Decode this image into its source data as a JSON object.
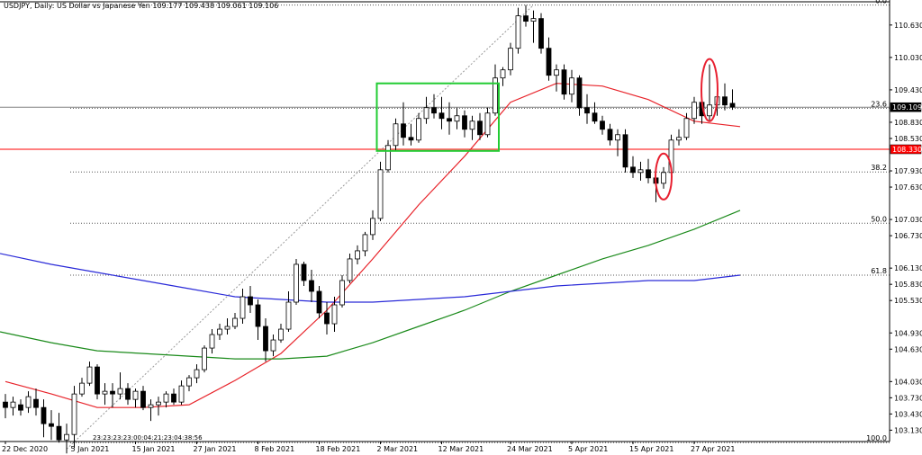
{
  "window": {
    "header": "USDJPY, Daily:  US Dollar vs Japanese Yen  109.177 109.438 109.061 109.106",
    "time_code": "23:23:23:23:00:04:21:23:04:38:56"
  },
  "colors": {
    "background": "#ffffff",
    "candle_outline": "#000000",
    "bull_fill": "#ffffff",
    "bear_fill": "#000000",
    "ma_fast": "#e8232a",
    "ma_mid": "#1a8a1a",
    "ma_slow": "#2a2ad8",
    "green_box": "#22cc33",
    "red_marker": "#e82030",
    "fib_line": "#555555",
    "price_line": "#808080",
    "resistance_line": "#ff0000"
  },
  "chart_data": {
    "type": "candlestick",
    "symbol": "USDJPY",
    "timeframe": "Daily",
    "ylim": [
      102.92,
      111.01
    ],
    "y_ticks": [
      "110.630",
      "110.030",
      "109.430",
      "108.830",
      "108.530",
      "107.930",
      "107.630",
      "107.030",
      "106.730",
      "106.130",
      "105.830",
      "105.530",
      "104.930",
      "104.630",
      "104.030",
      "103.730",
      "103.430",
      "103.130",
      "102.830"
    ],
    "x_ticks": [
      {
        "label": "22 Dec 2020",
        "index": 0
      },
      {
        "label": "5 Jan 2021",
        "index": 9
      },
      {
        "label": "15 Jan 2021",
        "index": 17
      },
      {
        "label": "27 Jan 2021",
        "index": 25
      },
      {
        "label": "8 Feb 2021",
        "index": 33
      },
      {
        "label": "18 Feb 2021",
        "index": 41
      },
      {
        "label": "2 Mar 2021",
        "index": 49
      },
      {
        "label": "12 Mar 2021",
        "index": 57
      },
      {
        "label": "24 Mar 2021",
        "index": 66
      },
      {
        "label": "5 Apr 2021",
        "index": 74
      },
      {
        "label": "15 Apr 2021",
        "index": 82
      },
      {
        "label": "27 Apr 2021",
        "index": 90
      }
    ],
    "candles": [
      {
        "o": 103.65,
        "h": 103.8,
        "l": 103.35,
        "c": 103.55
      },
      {
        "o": 103.55,
        "h": 103.75,
        "l": 103.4,
        "c": 103.65
      },
      {
        "o": 103.6,
        "h": 103.7,
        "l": 103.4,
        "c": 103.5
      },
      {
        "o": 103.55,
        "h": 103.85,
        "l": 103.45,
        "c": 103.75
      },
      {
        "o": 103.7,
        "h": 103.9,
        "l": 103.4,
        "c": 103.55
      },
      {
        "o": 103.55,
        "h": 103.7,
        "l": 103.0,
        "c": 103.25
      },
      {
        "o": 103.25,
        "h": 103.5,
        "l": 102.95,
        "c": 103.2
      },
      {
        "o": 103.2,
        "h": 103.45,
        "l": 102.9,
        "c": 102.95
      },
      {
        "o": 102.95,
        "h": 103.25,
        "l": 102.7,
        "c": 103.05
      },
      {
        "o": 103.05,
        "h": 103.95,
        "l": 102.8,
        "c": 103.8
      },
      {
        "o": 103.8,
        "h": 104.1,
        "l": 103.75,
        "c": 104.0
      },
      {
        "o": 104.0,
        "h": 104.4,
        "l": 103.95,
        "c": 104.3
      },
      {
        "o": 104.3,
        "h": 104.35,
        "l": 103.7,
        "c": 103.8
      },
      {
        "o": 103.8,
        "h": 104.0,
        "l": 103.6,
        "c": 103.85
      },
      {
        "o": 103.85,
        "h": 104.0,
        "l": 103.55,
        "c": 103.8
      },
      {
        "o": 103.8,
        "h": 104.2,
        "l": 103.7,
        "c": 103.9
      },
      {
        "o": 103.9,
        "h": 104.0,
        "l": 103.6,
        "c": 103.7
      },
      {
        "o": 103.7,
        "h": 103.9,
        "l": 103.55,
        "c": 103.85
      },
      {
        "o": 103.85,
        "h": 103.95,
        "l": 103.5,
        "c": 103.55
      },
      {
        "o": 103.55,
        "h": 103.7,
        "l": 103.3,
        "c": 103.6
      },
      {
        "o": 103.6,
        "h": 103.75,
        "l": 103.4,
        "c": 103.65
      },
      {
        "o": 103.65,
        "h": 103.85,
        "l": 103.55,
        "c": 103.8
      },
      {
        "o": 103.8,
        "h": 103.9,
        "l": 103.6,
        "c": 103.65
      },
      {
        "o": 103.65,
        "h": 104.05,
        "l": 103.6,
        "c": 103.95
      },
      {
        "o": 103.95,
        "h": 104.15,
        "l": 103.85,
        "c": 104.1
      },
      {
        "o": 104.1,
        "h": 104.35,
        "l": 104.0,
        "c": 104.25
      },
      {
        "o": 104.25,
        "h": 104.7,
        "l": 104.2,
        "c": 104.65
      },
      {
        "o": 104.65,
        "h": 105.0,
        "l": 104.55,
        "c": 104.9
      },
      {
        "o": 104.9,
        "h": 105.1,
        "l": 104.8,
        "c": 105.0
      },
      {
        "o": 105.0,
        "h": 105.2,
        "l": 104.9,
        "c": 105.05
      },
      {
        "o": 105.05,
        "h": 105.3,
        "l": 105.0,
        "c": 105.2
      },
      {
        "o": 105.2,
        "h": 105.75,
        "l": 105.1,
        "c": 105.6
      },
      {
        "o": 105.6,
        "h": 105.8,
        "l": 105.3,
        "c": 105.45
      },
      {
        "o": 105.45,
        "h": 105.55,
        "l": 104.8,
        "c": 105.05
      },
      {
        "o": 105.05,
        "h": 105.2,
        "l": 104.4,
        "c": 104.6
      },
      {
        "o": 104.6,
        "h": 104.9,
        "l": 104.5,
        "c": 104.8
      },
      {
        "o": 104.8,
        "h": 105.1,
        "l": 104.75,
        "c": 105.0
      },
      {
        "o": 105.0,
        "h": 105.7,
        "l": 104.95,
        "c": 105.5
      },
      {
        "o": 105.5,
        "h": 106.3,
        "l": 105.45,
        "c": 106.2
      },
      {
        "o": 106.2,
        "h": 106.25,
        "l": 105.8,
        "c": 105.9
      },
      {
        "o": 105.9,
        "h": 106.1,
        "l": 105.5,
        "c": 105.7
      },
      {
        "o": 105.7,
        "h": 105.8,
        "l": 105.2,
        "c": 105.3
      },
      {
        "o": 105.3,
        "h": 105.5,
        "l": 104.9,
        "c": 105.1
      },
      {
        "o": 105.1,
        "h": 105.6,
        "l": 104.95,
        "c": 105.45
      },
      {
        "o": 105.45,
        "h": 106.0,
        "l": 105.4,
        "c": 105.9
      },
      {
        "o": 105.9,
        "h": 106.4,
        "l": 105.85,
        "c": 106.3
      },
      {
        "o": 106.3,
        "h": 106.55,
        "l": 106.2,
        "c": 106.45
      },
      {
        "o": 106.45,
        "h": 106.8,
        "l": 106.35,
        "c": 106.75
      },
      {
        "o": 106.75,
        "h": 107.2,
        "l": 106.65,
        "c": 107.05
      },
      {
        "o": 107.05,
        "h": 108.1,
        "l": 107.0,
        "c": 107.95
      },
      {
        "o": 107.95,
        "h": 108.5,
        "l": 107.9,
        "c": 108.4
      },
      {
        "o": 108.4,
        "h": 108.9,
        "l": 108.3,
        "c": 108.8
      },
      {
        "o": 108.8,
        "h": 109.2,
        "l": 108.4,
        "c": 108.55
      },
      {
        "o": 108.55,
        "h": 108.8,
        "l": 108.4,
        "c": 108.5
      },
      {
        "o": 108.5,
        "h": 109.0,
        "l": 108.45,
        "c": 108.9
      },
      {
        "o": 108.9,
        "h": 109.3,
        "l": 108.8,
        "c": 109.1
      },
      {
        "o": 109.1,
        "h": 109.35,
        "l": 108.9,
        "c": 109.0
      },
      {
        "o": 109.0,
        "h": 109.3,
        "l": 108.7,
        "c": 108.9
      },
      {
        "o": 108.9,
        "h": 109.2,
        "l": 108.6,
        "c": 108.85
      },
      {
        "o": 108.85,
        "h": 109.1,
        "l": 108.7,
        "c": 108.95
      },
      {
        "o": 108.95,
        "h": 109.05,
        "l": 108.55,
        "c": 108.7
      },
      {
        "o": 108.7,
        "h": 108.95,
        "l": 108.5,
        "c": 108.85
      },
      {
        "o": 108.85,
        "h": 109.0,
        "l": 108.5,
        "c": 108.6
      },
      {
        "o": 108.6,
        "h": 109.1,
        "l": 108.55,
        "c": 109.0
      },
      {
        "o": 109.0,
        "h": 109.9,
        "l": 108.95,
        "c": 109.65
      },
      {
        "o": 109.65,
        "h": 109.85,
        "l": 109.5,
        "c": 109.8
      },
      {
        "o": 109.8,
        "h": 110.3,
        "l": 109.7,
        "c": 110.2
      },
      {
        "o": 110.2,
        "h": 110.95,
        "l": 110.1,
        "c": 110.8
      },
      {
        "o": 110.8,
        "h": 111.0,
        "l": 110.6,
        "c": 110.7
      },
      {
        "o": 110.7,
        "h": 110.9,
        "l": 110.3,
        "c": 110.75
      },
      {
        "o": 110.75,
        "h": 110.85,
        "l": 110.1,
        "c": 110.2
      },
      {
        "o": 110.2,
        "h": 110.4,
        "l": 109.6,
        "c": 109.7
      },
      {
        "o": 109.7,
        "h": 109.9,
        "l": 109.4,
        "c": 109.8
      },
      {
        "o": 109.8,
        "h": 109.9,
        "l": 109.25,
        "c": 109.35
      },
      {
        "o": 109.35,
        "h": 109.8,
        "l": 109.2,
        "c": 109.65
      },
      {
        "o": 109.65,
        "h": 109.7,
        "l": 108.95,
        "c": 109.1
      },
      {
        "o": 109.1,
        "h": 109.35,
        "l": 108.8,
        "c": 109.0
      },
      {
        "o": 109.0,
        "h": 109.2,
        "l": 108.8,
        "c": 108.85
      },
      {
        "o": 108.85,
        "h": 108.95,
        "l": 108.6,
        "c": 108.7
      },
      {
        "o": 108.7,
        "h": 108.8,
        "l": 108.4,
        "c": 108.5
      },
      {
        "o": 108.5,
        "h": 108.7,
        "l": 108.2,
        "c": 108.6
      },
      {
        "o": 108.6,
        "h": 108.7,
        "l": 107.9,
        "c": 108.0
      },
      {
        "o": 108.0,
        "h": 108.2,
        "l": 107.8,
        "c": 107.9
      },
      {
        "o": 107.9,
        "h": 108.1,
        "l": 107.75,
        "c": 107.95
      },
      {
        "o": 107.95,
        "h": 108.15,
        "l": 107.7,
        "c": 107.8
      },
      {
        "o": 107.8,
        "h": 108.0,
        "l": 107.35,
        "c": 107.7
      },
      {
        "o": 107.7,
        "h": 108.0,
        "l": 107.6,
        "c": 107.9
      },
      {
        "o": 107.9,
        "h": 108.6,
        "l": 107.85,
        "c": 108.5
      },
      {
        "o": 108.5,
        "h": 108.7,
        "l": 108.4,
        "c": 108.55
      },
      {
        "o": 108.55,
        "h": 109.0,
        "l": 108.5,
        "c": 108.9
      },
      {
        "o": 108.9,
        "h": 109.3,
        "l": 108.8,
        "c": 109.2
      },
      {
        "o": 109.2,
        "h": 109.4,
        "l": 108.8,
        "c": 108.95
      },
      {
        "o": 108.95,
        "h": 109.9,
        "l": 108.85,
        "c": 109.15
      },
      {
        "o": 109.15,
        "h": 109.4,
        "l": 108.95,
        "c": 109.3
      },
      {
        "o": 109.3,
        "h": 109.55,
        "l": 109.05,
        "c": 109.15
      },
      {
        "o": 109.18,
        "h": 109.44,
        "l": 109.06,
        "c": 109.11
      }
    ],
    "series": [
      {
        "points": [
          [
            0,
            104.03
          ],
          [
            6,
            103.8
          ],
          [
            12,
            103.55
          ],
          [
            18,
            103.55
          ],
          [
            24,
            103.6
          ],
          [
            30,
            104.05
          ],
          [
            36,
            104.55
          ],
          [
            42,
            105.35
          ],
          [
            48,
            106.3
          ],
          [
            54,
            107.3
          ],
          [
            60,
            108.2
          ],
          [
            66,
            109.2
          ],
          [
            72,
            109.55
          ],
          [
            78,
            109.5
          ],
          [
            84,
            109.25
          ],
          [
            90,
            108.85
          ],
          [
            96,
            108.75
          ]
        ]
      },
      {
        "points": [
          [
            0,
            104.95
          ],
          [
            6,
            104.75
          ],
          [
            12,
            104.6
          ],
          [
            18,
            104.55
          ],
          [
            24,
            104.5
          ],
          [
            30,
            104.45
          ],
          [
            36,
            104.45
          ],
          [
            42,
            104.5
          ],
          [
            48,
            104.75
          ],
          [
            54,
            105.05
          ],
          [
            60,
            105.35
          ],
          [
            66,
            105.7
          ],
          [
            72,
            106.0
          ],
          [
            78,
            106.3
          ],
          [
            84,
            106.55
          ],
          [
            90,
            106.85
          ],
          [
            96,
            107.2
          ]
        ]
      },
      {
        "points": [
          [
            0,
            106.4
          ],
          [
            6,
            106.2
          ],
          [
            12,
            106.05
          ],
          [
            18,
            105.9
          ],
          [
            24,
            105.75
          ],
          [
            30,
            105.6
          ],
          [
            36,
            105.55
          ],
          [
            42,
            105.5
          ],
          [
            48,
            105.5
          ],
          [
            54,
            105.55
          ],
          [
            60,
            105.6
          ],
          [
            66,
            105.7
          ],
          [
            72,
            105.8
          ],
          [
            78,
            105.85
          ],
          [
            84,
            105.9
          ],
          [
            90,
            105.9
          ],
          [
            96,
            106.0
          ]
        ]
      }
    ],
    "fib_levels": [
      {
        "label": "0.0",
        "value": 111.0
      },
      {
        "label": "23.6",
        "value": 109.09
      },
      {
        "label": "38.2",
        "value": 107.91
      },
      {
        "label": "50.0",
        "value": 106.96
      },
      {
        "label": "61.8",
        "value": 106.0
      },
      {
        "label": "100.0",
        "value": 102.9
      }
    ],
    "price_line": {
      "value": 109.109,
      "label": "109.109"
    },
    "resistance": {
      "value": 108.33,
      "label": "108.330"
    },
    "green_box": {
      "start": 49,
      "end": 64,
      "high": 109.55,
      "low": 108.3
    },
    "ellipses": [
      {
        "index": 86,
        "high": 108.25,
        "low": 107.4
      },
      {
        "index": 92,
        "high": 110.0,
        "low": 108.85
      }
    ],
    "trendline": {
      "from": [
        8,
        102.78
      ],
      "to": [
        69,
        111.0
      ]
    }
  }
}
